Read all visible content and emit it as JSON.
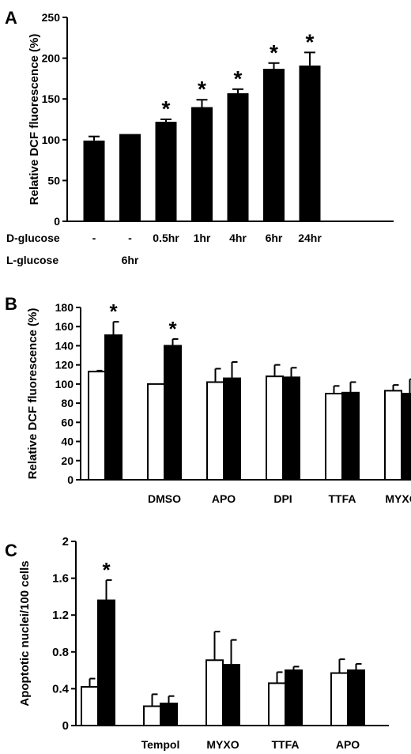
{
  "chart_data": [
    {
      "panel": "A",
      "type": "bar",
      "ylabel": "Relative DCF fluorescence (%)",
      "ylim": [
        0,
        250
      ],
      "yticks": [
        0,
        50,
        100,
        150,
        200,
        250
      ],
      "row_labels": [
        "D-glucose",
        "L-glucose"
      ],
      "categories": [
        {
          "d": "-",
          "l": ""
        },
        {
          "d": "-",
          "l": "6hr"
        },
        {
          "d": "0.5hr",
          "l": ""
        },
        {
          "d": "1hr",
          "l": ""
        },
        {
          "d": "4hr",
          "l": ""
        },
        {
          "d": "6hr",
          "l": ""
        },
        {
          "d": "24hr",
          "l": ""
        }
      ],
      "values": [
        99,
        107,
        122,
        140,
        157,
        187,
        191
      ],
      "errors": [
        5,
        0,
        3,
        9,
        5,
        7,
        16
      ],
      "significant": [
        false,
        false,
        true,
        true,
        true,
        true,
        true
      ],
      "bar_color": "#000000"
    },
    {
      "panel": "B",
      "type": "bar",
      "ylabel": "Relative DCF fluorescence (%)",
      "ylim": [
        0,
        180
      ],
      "yticks": [
        0,
        20,
        40,
        60,
        80,
        100,
        120,
        140,
        160,
        180
      ],
      "categories": [
        "",
        "DMSO",
        "APO",
        "DPI",
        "TTFA",
        "MYXO"
      ],
      "series": [
        {
          "fill": "#ffffff",
          "values": [
            113,
            100,
            102,
            108,
            90,
            93
          ],
          "errors": [
            1,
            0,
            14,
            12,
            8,
            6
          ],
          "significant": [
            false,
            false,
            false,
            false,
            false,
            false
          ]
        },
        {
          "fill": "#000000",
          "values": [
            151,
            140,
            106,
            107,
            91,
            90
          ],
          "errors": [
            14,
            7,
            17,
            10,
            11,
            15
          ],
          "significant": [
            true,
            true,
            false,
            false,
            false,
            false
          ]
        }
      ]
    },
    {
      "panel": "C",
      "type": "bar",
      "ylabel": "Apoptotic nuclei/100 cells",
      "ylim": [
        0,
        2
      ],
      "yticks": [
        "0",
        "0.4",
        "0.8",
        "1.2",
        "1.6",
        "2"
      ],
      "categories": [
        "",
        "Tempol",
        "MYXO",
        "TTFA",
        "APO"
      ],
      "series": [
        {
          "fill": "#ffffff",
          "values": [
            0.42,
            0.21,
            0.71,
            0.46,
            0.57
          ],
          "errors": [
            0.09,
            0.13,
            0.31,
            0.12,
            0.15
          ],
          "significant": [
            false,
            false,
            false,
            false,
            false
          ]
        },
        {
          "fill": "#000000",
          "values": [
            1.36,
            0.24,
            0.66,
            0.6,
            0.6
          ],
          "errors": [
            0.22,
            0.08,
            0.27,
            0.04,
            0.07
          ],
          "significant": [
            true,
            false,
            false,
            false,
            false
          ]
        }
      ]
    }
  ],
  "significance_marker": "*"
}
